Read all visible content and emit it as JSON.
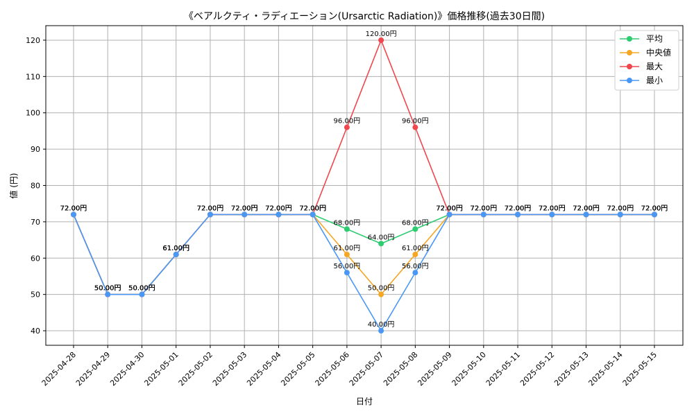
{
  "chart_data": {
    "type": "line",
    "title": "《ベアルクティ・ラディエーション(Ursarctic Radiation)》価格推移(過去30日間)",
    "xlabel": "日付",
    "ylabel": "値 (円)",
    "ylim": [
      36,
      124
    ],
    "yticks": [
      40,
      50,
      60,
      70,
      80,
      90,
      100,
      110,
      120
    ],
    "grid": true,
    "legend_position": "top-right",
    "value_suffix": "円",
    "categories": [
      "2025-04-28",
      "2025-04-29",
      "2025-04-30",
      "2025-05-01",
      "2025-05-02",
      "2025-05-03",
      "2025-05-04",
      "2025-05-05",
      "2025-05-06",
      "2025-05-07",
      "2025-05-08",
      "2025-05-09",
      "2025-05-10",
      "2025-05-11",
      "2025-05-12",
      "2025-05-13",
      "2025-05-14",
      "2025-05-15"
    ],
    "series": [
      {
        "name": "平均",
        "color": "#2ecc71",
        "values": [
          72,
          50,
          50,
          61,
          72,
          72,
          72,
          72,
          68,
          64,
          68,
          72,
          72,
          72,
          72,
          72,
          72,
          72
        ]
      },
      {
        "name": "中央値",
        "color": "#f5a623",
        "values": [
          72,
          50,
          50,
          61,
          72,
          72,
          72,
          72,
          61,
          50,
          61,
          72,
          72,
          72,
          72,
          72,
          72,
          72
        ]
      },
      {
        "name": "最大",
        "color": "#f0474f",
        "values": [
          72,
          50,
          50,
          61,
          72,
          72,
          72,
          72,
          96,
          120,
          96,
          72,
          72,
          72,
          72,
          72,
          72,
          72
        ]
      },
      {
        "name": "最小",
        "color": "#4a98f5",
        "values": [
          72,
          50,
          50,
          61,
          72,
          72,
          72,
          72,
          56,
          40,
          56,
          72,
          72,
          72,
          72,
          72,
          72,
          72
        ]
      }
    ]
  }
}
